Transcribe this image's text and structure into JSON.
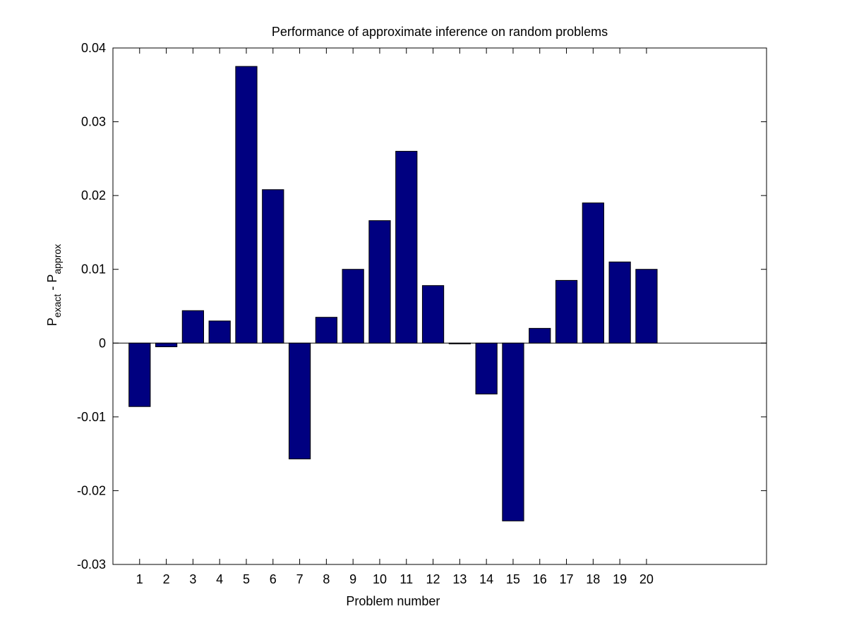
{
  "chart_data": {
    "type": "bar",
    "title": "Performance of approximate inference on random problems",
    "xlabel": "Problem number",
    "ylabel": {
      "main": "P",
      "sub_exact": "exact",
      "separator": " - ",
      "sub_approx": "approx"
    },
    "categories": [
      "1",
      "2",
      "3",
      "4",
      "5",
      "6",
      "7",
      "8",
      "9",
      "10",
      "11",
      "12",
      "13",
      "14",
      "15",
      "16",
      "17",
      "18",
      "19",
      "20"
    ],
    "values": [
      -0.0086,
      -0.0005,
      0.0044,
      0.003,
      0.0375,
      0.0208,
      -0.0157,
      0.0035,
      0.01,
      0.0166,
      0.026,
      0.0078,
      -0.0001,
      -0.0069,
      -0.0241,
      0.002,
      0.0085,
      0.019,
      0.011,
      0.01
    ],
    "ylim": [
      -0.03,
      0.04
    ],
    "xlim": [
      0,
      24.5
    ],
    "yticks": [
      -0.03,
      -0.02,
      -0.01,
      0,
      0.01,
      0.02,
      0.03,
      0.04
    ],
    "ytick_labels": [
      "-0.03",
      "-0.02",
      "-0.01",
      "0",
      "0.01",
      "0.02",
      "0.03",
      "0.04"
    ],
    "grid": false,
    "legend": "none",
    "bar_color": "#000080",
    "axis_color": "#000000"
  }
}
